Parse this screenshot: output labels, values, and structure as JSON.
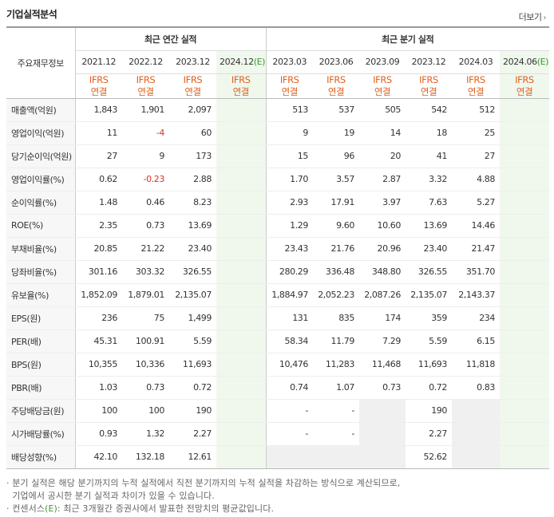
{
  "title": "기업실적분석",
  "more_label": "더보기",
  "corner_label": "주요재무정보",
  "group_annual": "최근 연간 실적",
  "group_quarter": "최근 분기 실적",
  "periods": [
    {
      "label": "2021.12",
      "est": false
    },
    {
      "label": "2022.12",
      "est": false
    },
    {
      "label": "2023.12",
      "est": false
    },
    {
      "label": "2024.12",
      "est": true
    },
    {
      "label": "2023.03",
      "est": false
    },
    {
      "label": "2023.06",
      "est": false
    },
    {
      "label": "2023.09",
      "est": false
    },
    {
      "label": "2023.12",
      "est": false
    },
    {
      "label": "2024.03",
      "est": false
    },
    {
      "label": "2024.06",
      "est": true
    }
  ],
  "est_marker": "(E)",
  "ifrs_line1": "IFRS",
  "ifrs_line2": "연결",
  "rows": [
    {
      "label": "매출액(억원)",
      "values": [
        "1,843",
        "1,901",
        "2,097",
        "",
        "513",
        "537",
        "505",
        "542",
        "512",
        ""
      ],
      "group_start": false
    },
    {
      "label": "영업이익(억원)",
      "values": [
        "11",
        "-4",
        "60",
        "",
        "9",
        "19",
        "14",
        "18",
        "25",
        ""
      ]
    },
    {
      "label": "당기순이익(억원)",
      "values": [
        "27",
        "9",
        "173",
        "",
        "15",
        "96",
        "20",
        "41",
        "27",
        ""
      ]
    },
    {
      "label": "영업이익률(%)",
      "values": [
        "0.62",
        "-0.23",
        "2.88",
        "",
        "1.70",
        "3.57",
        "2.87",
        "3.32",
        "4.88",
        ""
      ],
      "group_start": true
    },
    {
      "label": "순이익률(%)",
      "values": [
        "1.48",
        "0.46",
        "8.23",
        "",
        "2.93",
        "17.91",
        "3.97",
        "7.63",
        "5.27",
        ""
      ]
    },
    {
      "label": "ROE(%)",
      "values": [
        "2.35",
        "0.73",
        "13.69",
        "",
        "1.29",
        "9.60",
        "10.60",
        "13.69",
        "14.46",
        ""
      ]
    },
    {
      "label": "부채비율(%)",
      "values": [
        "20.85",
        "21.22",
        "23.40",
        "",
        "23.43",
        "21.76",
        "20.96",
        "23.40",
        "21.47",
        ""
      ],
      "group_start": true
    },
    {
      "label": "당좌비율(%)",
      "values": [
        "301.16",
        "303.32",
        "326.55",
        "",
        "280.29",
        "336.48",
        "348.80",
        "326.55",
        "351.70",
        ""
      ]
    },
    {
      "label": "유보율(%)",
      "values": [
        "1,852.09",
        "1,879.01",
        "2,135.07",
        "",
        "1,884.97",
        "2,052.23",
        "2,087.26",
        "2,135.07",
        "2,143.37",
        ""
      ]
    },
    {
      "label": "EPS(원)",
      "values": [
        "236",
        "75",
        "1,499",
        "",
        "131",
        "835",
        "174",
        "359",
        "234",
        ""
      ],
      "group_start": true
    },
    {
      "label": "PER(배)",
      "values": [
        "45.31",
        "100.91",
        "5.59",
        "",
        "58.34",
        "11.79",
        "7.29",
        "5.59",
        "6.15",
        ""
      ]
    },
    {
      "label": "BPS(원)",
      "values": [
        "10,355",
        "10,336",
        "11,693",
        "",
        "10,476",
        "11,283",
        "11,468",
        "11,693",
        "11,818",
        ""
      ]
    },
    {
      "label": "PBR(배)",
      "values": [
        "1.03",
        "0.73",
        "0.72",
        "",
        "0.74",
        "1.07",
        "0.73",
        "0.72",
        "0.83",
        ""
      ]
    },
    {
      "label": "주당배당금(원)",
      "values": [
        "100",
        "100",
        "190",
        "",
        "-",
        "-",
        "",
        "190",
        "",
        ""
      ],
      "group_start": true
    },
    {
      "label": "시가배당률(%)",
      "values": [
        "0.93",
        "1.32",
        "2.27",
        "",
        "-",
        "-",
        "",
        "2.27",
        "",
        ""
      ]
    },
    {
      "label": "배당성향(%)",
      "values": [
        "42.10",
        "132.18",
        "12.61",
        "",
        "",
        "",
        "",
        "52.62",
        "",
        ""
      ]
    }
  ],
  "notes": {
    "line1": "· 분기 실적은 해당 분기까지의 누적 실적에서 직전 분기까지의 누적 실적을 차감하는 방식으로 계산되므로,",
    "line2": "  기업에서 공시한 분기 실적과 차이가 있을 수 있습니다.",
    "line3_prefix": "· 컨센서스",
    "line3_e": "(E)",
    "line3_suffix": ": 최근 3개월간 증권사에서 발표한 전망치의 평균값입니다."
  },
  "colors": {
    "accent_orange": "#e0601c",
    "estimate_green": "#3a9a2f",
    "negative_red": "#e0301e",
    "estimate_bg": "#f0f8ee"
  }
}
